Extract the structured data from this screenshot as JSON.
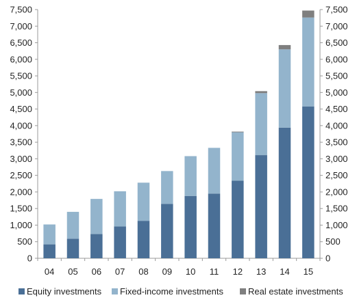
{
  "chart_data": {
    "type": "bar",
    "stacked": true,
    "categories": [
      "04",
      "05",
      "06",
      "07",
      "08",
      "09",
      "10",
      "11",
      "12",
      "13",
      "14",
      "15"
    ],
    "series": [
      {
        "name": "Equity investments",
        "color": "#4a6f96",
        "values": [
          420,
          590,
          730,
          960,
          1130,
          1640,
          1880,
          1950,
          2340,
          3110,
          3940,
          4580
        ]
      },
      {
        "name": "Fixed-income investments",
        "color": "#93b4cc",
        "values": [
          600,
          810,
          1060,
          1060,
          1150,
          990,
          1200,
          1380,
          1460,
          1870,
          2360,
          2680
        ]
      },
      {
        "name": "Real estate investments",
        "color": "#7f7f7f",
        "values": [
          0,
          0,
          0,
          0,
          0,
          0,
          0,
          0,
          20,
          60,
          130,
          210
        ]
      }
    ],
    "ylim": [
      0,
      7500
    ],
    "yticks": [
      0,
      500,
      1000,
      1500,
      2000,
      2500,
      3000,
      3500,
      4000,
      4500,
      5000,
      5500,
      6000,
      6500,
      7000,
      7500
    ],
    "ytick_labels": [
      "0",
      "500",
      "1,000",
      "1,500",
      "2,000",
      "2,500",
      "3,000",
      "3,500",
      "4,000",
      "4,500",
      "5,000",
      "5,500",
      "6,000",
      "6,500",
      "7,000",
      "7,500"
    ],
    "dual_y_axis": true,
    "grid": false,
    "legend": "bottom",
    "axis_color": "#999999",
    "text_color": "#222222"
  }
}
